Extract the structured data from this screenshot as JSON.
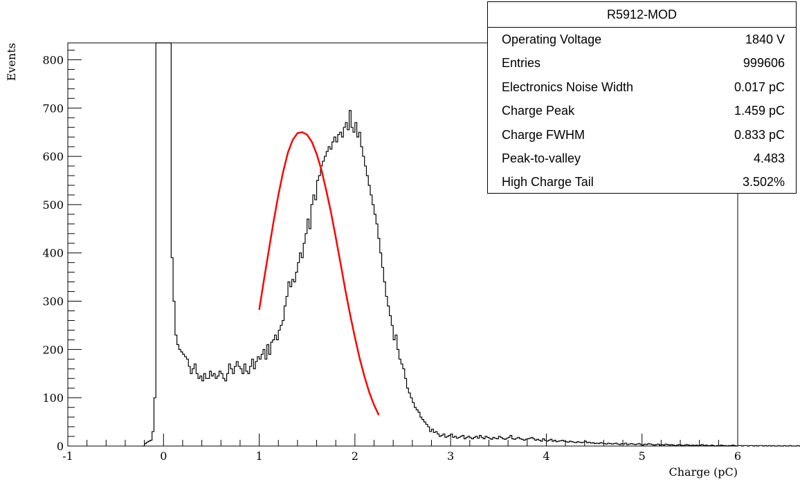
{
  "stats": {
    "title": "R5912-MOD",
    "rows": [
      {
        "label": "Operating Voltage",
        "value": "1840 V"
      },
      {
        "label": "Entries",
        "value": "999606"
      },
      {
        "label": "Electronics Noise Width",
        "value": "0.017 pC"
      },
      {
        "label": "Charge Peak",
        "value": "1.459 pC"
      },
      {
        "label": "Charge FWHM",
        "value": "0.833 pC"
      },
      {
        "label": "Peak-to-valley",
        "value": "4.483"
      },
      {
        "label": "High Charge Tail",
        "value": "3.502%"
      }
    ]
  },
  "chart_data": {
    "type": "histogram",
    "xlabel": "Charge (pC)",
    "ylabel": "Events",
    "xlim": [
      -1,
      6
    ],
    "ylim": [
      0,
      835
    ],
    "x_ticks": [
      -1,
      0,
      1,
      2,
      3,
      4,
      5,
      6
    ],
    "y_ticks": [
      0,
      100,
      200,
      300,
      400,
      500,
      600,
      700,
      800
    ],
    "grid": false,
    "histogram": {
      "bin_width": 0.02,
      "x_start": -0.22,
      "values": [
        0,
        5,
        8,
        10,
        12,
        30,
        100,
        835,
        835,
        835,
        835,
        835,
        835,
        835,
        835,
        390,
        300,
        230,
        210,
        200,
        195,
        190,
        185,
        180,
        165,
        150,
        160,
        170,
        150,
        140,
        145,
        135,
        150,
        140,
        140,
        155,
        145,
        150,
        140,
        145,
        155,
        150,
        140,
        135,
        150,
        170,
        160,
        150,
        165,
        175,
        165,
        160,
        150,
        170,
        155,
        150,
        165,
        180,
        160,
        175,
        185,
        180,
        190,
        200,
        180,
        210,
        190,
        215,
        220,
        230,
        220,
        240,
        250,
        260,
        290,
        310,
        340,
        330,
        345,
        340,
        360,
        380,
        400,
        390,
        420,
        440,
        470,
        450,
        500,
        520,
        510,
        550,
        560,
        580,
        590,
        600,
        610,
        620,
        615,
        630,
        640,
        630,
        645,
        650,
        640,
        660,
        670,
        655,
        695,
        660,
        650,
        670,
        640,
        650,
        620,
        600,
        580,
        560,
        540,
        520,
        500,
        480,
        460,
        430,
        400,
        370,
        340,
        310,
        290,
        270,
        250,
        220,
        230,
        200,
        180,
        170,
        160,
        140,
        120,
        110,
        100,
        90,
        80,
        75,
        70,
        60,
        55,
        50,
        45,
        40,
        30,
        35,
        28,
        30,
        25,
        20,
        22,
        25,
        18,
        20,
        22,
        25,
        18,
        20,
        16,
        18,
        20,
        22,
        15,
        18,
        20,
        17,
        15,
        18,
        20,
        16,
        22,
        18,
        15,
        20,
        18,
        16,
        14,
        18,
        16,
        15,
        20,
        18,
        15,
        14,
        16,
        18,
        22,
        15,
        14,
        16,
        18,
        15,
        14,
        12,
        14,
        15,
        16,
        18,
        15,
        12,
        14,
        12,
        10,
        15,
        12,
        10,
        12,
        14,
        10,
        12,
        9,
        10,
        11,
        12,
        10,
        9,
        8,
        10,
        9,
        8,
        7,
        9,
        8,
        7,
        8,
        10,
        7,
        8,
        6,
        7,
        5,
        6,
        5,
        7,
        6,
        5,
        4,
        6,
        5,
        4,
        5,
        6,
        4,
        3,
        5,
        4,
        6,
        3,
        4,
        5,
        4,
        3,
        4,
        5,
        3,
        2,
        4,
        3,
        5,
        4,
        3,
        2,
        3,
        4,
        2,
        3,
        2,
        4,
        3,
        2,
        3,
        2,
        1,
        2,
        3,
        2,
        1,
        2,
        3,
        2,
        1,
        2,
        1,
        2,
        1,
        2,
        3,
        1,
        2,
        1,
        1,
        2,
        1,
        0,
        1,
        1,
        2,
        1,
        1,
        0,
        1,
        1,
        2,
        1,
        0,
        1,
        1,
        0,
        1,
        1,
        0,
        1,
        1,
        0,
        1,
        0,
        1,
        1,
        0,
        1,
        0,
        1,
        0,
        1,
        0,
        0,
        1,
        0,
        0,
        1,
        0,
        0,
        1,
        0,
        0,
        0,
        1,
        0,
        0,
        0,
        0,
        1,
        0,
        0,
        0,
        0,
        0,
        0,
        0,
        0
      ]
    },
    "fit": {
      "color": "#ff0000",
      "x": [
        1.0,
        1.05,
        1.1,
        1.15,
        1.2,
        1.25,
        1.3,
        1.35,
        1.4,
        1.45,
        1.5,
        1.55,
        1.6,
        1.65,
        1.7,
        1.75,
        1.8,
        1.85,
        1.9,
        1.95,
        2.0,
        2.05,
        2.1,
        2.15,
        2.2,
        2.25
      ],
      "y": [
        282,
        345,
        405,
        465,
        520,
        568,
        608,
        634,
        648,
        650,
        645,
        630,
        605,
        572,
        530,
        484,
        432,
        378,
        323,
        272,
        225,
        181,
        144,
        111,
        85,
        64
      ]
    }
  }
}
